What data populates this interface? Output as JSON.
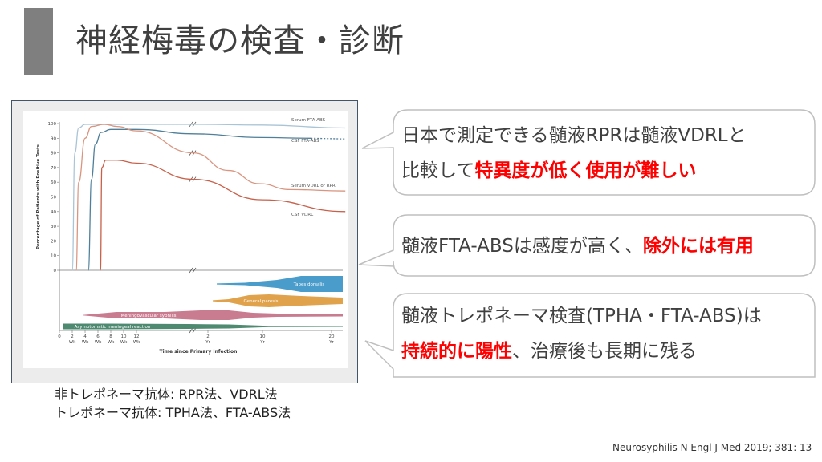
{
  "slide": {
    "title": "神経梅毒の検査・診断",
    "accent_bar_color": "#7f7f7f",
    "captions": [
      "非トレポネーマ抗体: RPR法、VDRL法",
      "トレポネーマ抗体: TPHA法、FTA-ABS法"
    ],
    "citation": "Neurosyphilis N Engl J Med 2019; 381: 13"
  },
  "callouts": [
    {
      "lines": [
        [
          {
            "text": "日本で測定できる髄液RPRは髄液VDRLと",
            "highlight": false
          }
        ],
        [
          {
            "text": "比較して",
            "highlight": false
          },
          {
            "text": "特異度が低く使用が難しい",
            "highlight": true
          }
        ]
      ]
    },
    {
      "lines": [
        [
          {
            "text": "髄液FTA-ABSは感度が高く、",
            "highlight": false
          },
          {
            "text": "除外には有用",
            "highlight": true
          }
        ]
      ]
    },
    {
      "lines": [
        [
          {
            "text": "髄液トレポネーマ検査(TPHA・FTA-ABS)は",
            "highlight": false
          }
        ],
        [
          {
            "text": "持続的に陽性",
            "highlight": true
          },
          {
            "text": "、治療後も長期に残る",
            "highlight": false
          }
        ]
      ]
    }
  ],
  "highlight_color": "#ff0000",
  "chart_data": {
    "type": "line",
    "ylabel": "Percentage of Patients with Positive Tests",
    "xlabel": "Time since Primary Infection",
    "ylim": [
      0,
      100
    ],
    "yticks": [
      "0",
      "10",
      "20",
      "30",
      "40",
      "50",
      "60",
      "70",
      "80",
      "90",
      "100"
    ],
    "xticks": [
      {
        "value": "0",
        "unit": ""
      },
      {
        "value": "2",
        "unit": "Wk"
      },
      {
        "value": "4",
        "unit": "Wk"
      },
      {
        "value": "6",
        "unit": "Wk"
      },
      {
        "value": "8",
        "unit": "Wk"
      },
      {
        "value": "10",
        "unit": "Wk"
      },
      {
        "value": "12",
        "unit": "Wk"
      },
      {
        "value": "2",
        "unit": "Yr"
      },
      {
        "value": "10",
        "unit": "Yr"
      },
      {
        "value": "20",
        "unit": "Yr"
      }
    ],
    "axis_break": true,
    "series": [
      {
        "name": "Serum FTA-ABS",
        "color": "#a9c4d6",
        "points": [
          {
            "x": 2,
            "unit": "Wk",
            "y": 0
          },
          {
            "x": 2.4,
            "unit": "Wk",
            "y": 80
          },
          {
            "x": 3,
            "unit": "Wk",
            "y": 97
          },
          {
            "x": 4,
            "unit": "Wk",
            "y": 99.5
          },
          {
            "x": 12,
            "unit": "Wk",
            "y": 99.5
          },
          {
            "x": 1,
            "unit": "Yr",
            "y": 99.5
          },
          {
            "x": 10,
            "unit": "Yr",
            "y": 99
          },
          {
            "x": 22,
            "unit": "Yr",
            "y": 97
          }
        ]
      },
      {
        "name": "CSF FTA-ABS",
        "color": "#4f7f99",
        "dashed_after": {
          "x": 17,
          "unit": "Yr"
        },
        "points": [
          {
            "x": 4.5,
            "unit": "Wk",
            "y": 0
          },
          {
            "x": 5,
            "unit": "Wk",
            "y": 62
          },
          {
            "x": 5.6,
            "unit": "Wk",
            "y": 86
          },
          {
            "x": 6.5,
            "unit": "Wk",
            "y": 94
          },
          {
            "x": 8,
            "unit": "Wk",
            "y": 96
          },
          {
            "x": 12,
            "unit": "Wk",
            "y": 96
          },
          {
            "x": 1,
            "unit": "Yr",
            "y": 93
          },
          {
            "x": 10,
            "unit": "Yr",
            "y": 90.5
          },
          {
            "x": 17,
            "unit": "Yr",
            "y": 90
          },
          {
            "x": 22,
            "unit": "Yr",
            "y": 89.5
          }
        ]
      },
      {
        "name": "Serum VDRL or RPR",
        "color": "#d9957f",
        "points": [
          {
            "x": 2.6,
            "unit": "Wk",
            "y": 0
          },
          {
            "x": 3,
            "unit": "Wk",
            "y": 60
          },
          {
            "x": 4,
            "unit": "Wk",
            "y": 90
          },
          {
            "x": 5,
            "unit": "Wk",
            "y": 98
          },
          {
            "x": 7,
            "unit": "Wk",
            "y": 99.5
          },
          {
            "x": 9,
            "unit": "Wk",
            "y": 98
          },
          {
            "x": 12,
            "unit": "Wk",
            "y": 95
          },
          {
            "x": 1,
            "unit": "Yr",
            "y": 80
          },
          {
            "x": 5,
            "unit": "Yr",
            "y": 68
          },
          {
            "x": 9.5,
            "unit": "Yr",
            "y": 59
          },
          {
            "x": 14,
            "unit": "Yr",
            "y": 55
          },
          {
            "x": 22,
            "unit": "Yr",
            "y": 54
          }
        ]
      },
      {
        "name": "CSF VDRL",
        "color": "#c8604a",
        "points": [
          {
            "x": 6.4,
            "unit": "Wk",
            "y": 0
          },
          {
            "x": 6.6,
            "unit": "Wk",
            "y": 70
          },
          {
            "x": 7.2,
            "unit": "Wk",
            "y": 75
          },
          {
            "x": 9,
            "unit": "Wk",
            "y": 75
          },
          {
            "x": 12,
            "unit": "Wk",
            "y": 73
          },
          {
            "x": 1,
            "unit": "Yr",
            "y": 62
          },
          {
            "x": 10,
            "unit": "Yr",
            "y": 48
          },
          {
            "x": 22,
            "unit": "Yr",
            "y": 40
          }
        ]
      }
    ],
    "timeline_bands": [
      {
        "name": "Tabes dorsalis",
        "color": "#4a9ccb"
      },
      {
        "name": "General paresis",
        "color": "#e0a24a"
      },
      {
        "name": "Meningovascular syphilis",
        "color": "#c97b90"
      },
      {
        "name": "Asymptomatic meningeal reaction",
        "color": "#4e8a72"
      }
    ]
  }
}
